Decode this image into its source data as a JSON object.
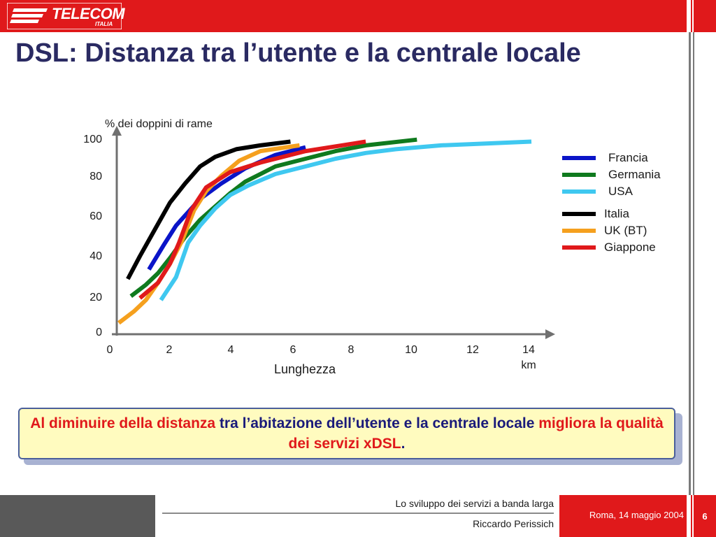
{
  "brand": {
    "logo_text": "TELECOM",
    "logo_subtext": "ITALIA",
    "color": "#e0191b"
  },
  "title": "DSL: Distanza tra l’utente e la centrale locale",
  "chart_data": {
    "type": "line",
    "ylabel": "% dei doppini di rame",
    "xlabel": "Lunghezza",
    "x_unit": "km",
    "xlim": [
      0,
      14
    ],
    "ylim": [
      0,
      100
    ],
    "x_ticks": [
      "0",
      "2",
      "4",
      "6",
      "8",
      "10",
      "12",
      "14"
    ],
    "y_ticks": [
      "0",
      "20",
      "40",
      "60",
      "80",
      "100"
    ],
    "grid": false,
    "legend_placement": "right",
    "series": [
      {
        "name": "Francia",
        "color": "#0a14c8",
        "points": [
          [
            1.3,
            31
          ],
          [
            1.8,
            44
          ],
          [
            2.2,
            54
          ],
          [
            3,
            68
          ],
          [
            3.7,
            76
          ],
          [
            4.5,
            84
          ],
          [
            5.5,
            91
          ],
          [
            6.5,
            95
          ]
        ]
      },
      {
        "name": "Germania",
        "color": "#0f7a1e",
        "points": [
          [
            0.7,
            17
          ],
          [
            1.2,
            23
          ],
          [
            1.6,
            29
          ],
          [
            2,
            37
          ],
          [
            2.5,
            48
          ],
          [
            3,
            57
          ],
          [
            3.5,
            64
          ],
          [
            4,
            71
          ],
          [
            4.5,
            77
          ],
          [
            5,
            81
          ],
          [
            5.5,
            85
          ],
          [
            6.5,
            89
          ],
          [
            7.5,
            93
          ],
          [
            8.5,
            96
          ],
          [
            10.2,
            99
          ]
        ]
      },
      {
        "name": "USA",
        "color": "#3fc8f0",
        "points": [
          [
            1.7,
            15
          ],
          [
            2.2,
            27
          ],
          [
            2.6,
            45
          ],
          [
            3,
            54
          ],
          [
            3.5,
            63
          ],
          [
            4,
            70
          ],
          [
            4.6,
            75
          ],
          [
            5.5,
            81
          ],
          [
            6.5,
            85
          ],
          [
            7.5,
            89
          ],
          [
            8.5,
            92
          ],
          [
            9.5,
            94
          ],
          [
            11,
            96
          ],
          [
            12.5,
            97
          ],
          [
            14,
            98
          ]
        ]
      },
      {
        "name": "Italia",
        "color": "#000000",
        "points": [
          [
            0.6,
            26
          ],
          [
            1,
            38
          ],
          [
            1.5,
            52
          ],
          [
            2,
            66
          ],
          [
            2.5,
            76
          ],
          [
            3,
            85
          ],
          [
            3.5,
            90
          ],
          [
            4.2,
            94
          ],
          [
            5,
            96
          ],
          [
            6,
            98
          ]
        ]
      },
      {
        "name": "UK (BT)",
        "color": "#f5a01e",
        "points": [
          [
            0.3,
            3
          ],
          [
            0.8,
            9
          ],
          [
            1.2,
            15
          ],
          [
            1.6,
            24
          ],
          [
            2,
            34
          ],
          [
            2.4,
            46
          ],
          [
            2.8,
            62
          ],
          [
            3.2,
            72
          ],
          [
            3.7,
            80
          ],
          [
            4.3,
            88
          ],
          [
            5,
            93
          ],
          [
            6.3,
            96
          ]
        ]
      },
      {
        "name": "Giappone",
        "color": "#e0191b",
        "points": [
          [
            1,
            16
          ],
          [
            1.6,
            24
          ],
          [
            2,
            34
          ],
          [
            2.3,
            45
          ],
          [
            2.7,
            62
          ],
          [
            3.2,
            74
          ],
          [
            4,
            82
          ],
          [
            5,
            87
          ],
          [
            6.5,
            93
          ],
          [
            8.5,
            98
          ]
        ]
      }
    ]
  },
  "callout": {
    "part1": "Al diminuire della distanza",
    "part2": " tra l’abitazione dell’utente e la centrale locale ",
    "part3": "migliora la qualità dei servizi xDSL",
    "part4": "."
  },
  "footer": {
    "line1": "Lo sviluppo dei servizi a banda larga",
    "line2": "Riccardo Perissich",
    "date": "Roma, 14 maggio  2004",
    "page": "6"
  }
}
